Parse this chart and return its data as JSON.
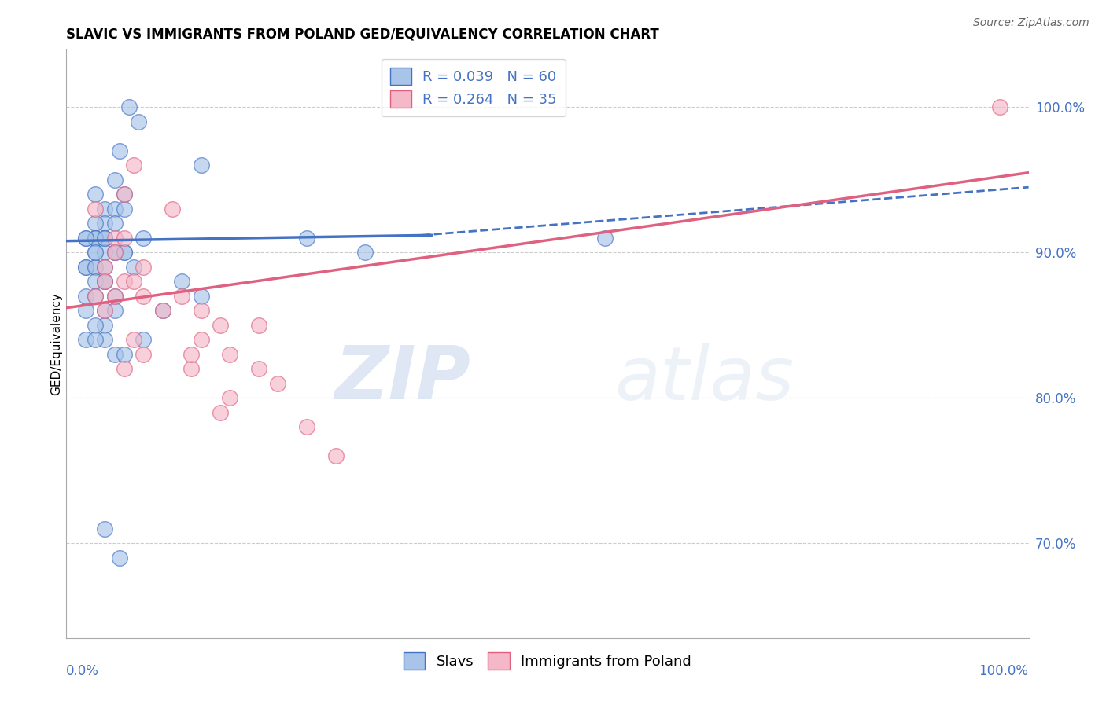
{
  "title": "SLAVIC VS IMMIGRANTS FROM POLAND GED/EQUIVALENCY CORRELATION CHART",
  "source": "Source: ZipAtlas.com",
  "ylabel": "GED/Equivalency",
  "right_yticks": [
    0.7,
    0.8,
    0.9,
    1.0
  ],
  "right_yticklabels": [
    "70.0%",
    "80.0%",
    "90.0%",
    "100.0%"
  ],
  "xlim": [
    0.0,
    1.0
  ],
  "ylim": [
    0.635,
    1.04
  ],
  "legend_r1": "R = 0.039",
  "legend_n1": "N = 60",
  "legend_r2": "R = 0.264",
  "legend_n2": "N = 35",
  "series1_label": "Slavs",
  "series2_label": "Immigrants from Poland",
  "series1_color": "#a8c4e8",
  "series2_color": "#f4b8c8",
  "trend1_color": "#4472c4",
  "trend2_color": "#e06080",
  "watermark_zip": "ZIP",
  "watermark_atlas": "atlas",
  "slavs_x": [
    0.065,
    0.075,
    0.055,
    0.14,
    0.05,
    0.06,
    0.03,
    0.04,
    0.05,
    0.06,
    0.04,
    0.03,
    0.05,
    0.04,
    0.03,
    0.02,
    0.03,
    0.04,
    0.05,
    0.06,
    0.03,
    0.04,
    0.02,
    0.03,
    0.02,
    0.03,
    0.04,
    0.03,
    0.04,
    0.05,
    0.02,
    0.03,
    0.04,
    0.05,
    0.04,
    0.03,
    0.02,
    0.04,
    0.05,
    0.03,
    0.04,
    0.02,
    0.03,
    0.05,
    0.06,
    0.04,
    0.07,
    0.08,
    0.25,
    0.31,
    0.02,
    0.1,
    0.12,
    0.03,
    0.08,
    0.14,
    0.06,
    0.04,
    0.56,
    0.055
  ],
  "slavs_y": [
    1.0,
    0.99,
    0.97,
    0.96,
    0.95,
    0.94,
    0.94,
    0.93,
    0.93,
    0.93,
    0.92,
    0.92,
    0.92,
    0.91,
    0.91,
    0.91,
    0.91,
    0.91,
    0.9,
    0.9,
    0.9,
    0.9,
    0.89,
    0.89,
    0.89,
    0.89,
    0.88,
    0.88,
    0.88,
    0.87,
    0.87,
    0.87,
    0.86,
    0.86,
    0.85,
    0.85,
    0.84,
    0.84,
    0.83,
    0.91,
    0.91,
    0.91,
    0.9,
    0.9,
    0.9,
    0.89,
    0.89,
    0.91,
    0.91,
    0.9,
    0.86,
    0.86,
    0.88,
    0.84,
    0.84,
    0.87,
    0.83,
    0.71,
    0.91,
    0.69
  ],
  "poland_x": [
    0.97,
    0.07,
    0.06,
    0.11,
    0.03,
    0.05,
    0.06,
    0.05,
    0.04,
    0.08,
    0.04,
    0.06,
    0.03,
    0.08,
    0.05,
    0.04,
    0.1,
    0.14,
    0.16,
    0.2,
    0.14,
    0.07,
    0.08,
    0.17,
    0.06,
    0.13,
    0.07,
    0.12,
    0.13,
    0.2,
    0.22,
    0.17,
    0.16,
    0.25,
    0.28
  ],
  "poland_y": [
    1.0,
    0.96,
    0.94,
    0.93,
    0.93,
    0.91,
    0.91,
    0.9,
    0.89,
    0.89,
    0.88,
    0.88,
    0.87,
    0.87,
    0.87,
    0.86,
    0.86,
    0.86,
    0.85,
    0.85,
    0.84,
    0.84,
    0.83,
    0.83,
    0.82,
    0.82,
    0.88,
    0.87,
    0.83,
    0.82,
    0.81,
    0.8,
    0.79,
    0.78,
    0.76
  ],
  "trend1_x0": 0.0,
  "trend1_y0": 0.908,
  "trend1_x1": 0.38,
  "trend1_y1": 0.912,
  "trend1_xd0": 0.37,
  "trend1_yd0": 0.912,
  "trend1_xd1": 1.0,
  "trend1_yd1": 0.945,
  "trend2_x0": 0.0,
  "trend2_y0": 0.862,
  "trend2_x1": 1.0,
  "trend2_y1": 0.955
}
